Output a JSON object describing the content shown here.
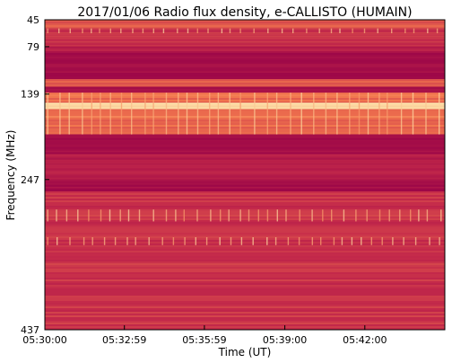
{
  "chart_data": {
    "type": "heatmap",
    "title": "2017/01/06  Radio flux density, e-CALLISTO (HUMAIN)",
    "xlabel": "Time (UT)",
    "ylabel": "Frequency (MHz)",
    "x_ticks": [
      "05:30:00",
      "05:32:59",
      "05:35:59",
      "05:39:00",
      "05:42:00"
    ],
    "x_tick_seconds": [
      0,
      179,
      359,
      540,
      720
    ],
    "x_range_seconds": [
      0,
      900
    ],
    "y_ticks": [
      "45",
      "79",
      "139",
      "247",
      "437"
    ],
    "y_tick_mhz": [
      45,
      79,
      139,
      247,
      437
    ],
    "y_range_mhz": [
      45,
      437
    ],
    "y_direction": "increasing-downward",
    "colors": {
      "low": "#9e0848",
      "mid": "#c42a4a",
      "high": "#f47a4e",
      "peak": "#fde8b0"
    },
    "bands_mhz": [
      {
        "from": 45,
        "to": 56,
        "level": "mid-high"
      },
      {
        "from": 56,
        "to": 79,
        "level": "mid"
      },
      {
        "from": 79,
        "to": 85,
        "level": "low-mid"
      },
      {
        "from": 85,
        "to": 120,
        "level": "low"
      },
      {
        "from": 120,
        "to": 130,
        "level": "mid-high"
      },
      {
        "from": 130,
        "to": 137,
        "level": "low"
      },
      {
        "from": 137,
        "to": 190,
        "level": "high"
      },
      {
        "from": 150,
        "to": 158,
        "level": "peak"
      },
      {
        "from": 190,
        "to": 215,
        "level": "low"
      },
      {
        "from": 215,
        "to": 247,
        "level": "low-mid"
      },
      {
        "from": 247,
        "to": 262,
        "level": "low"
      },
      {
        "from": 262,
        "to": 437,
        "level": "mid"
      }
    ]
  }
}
